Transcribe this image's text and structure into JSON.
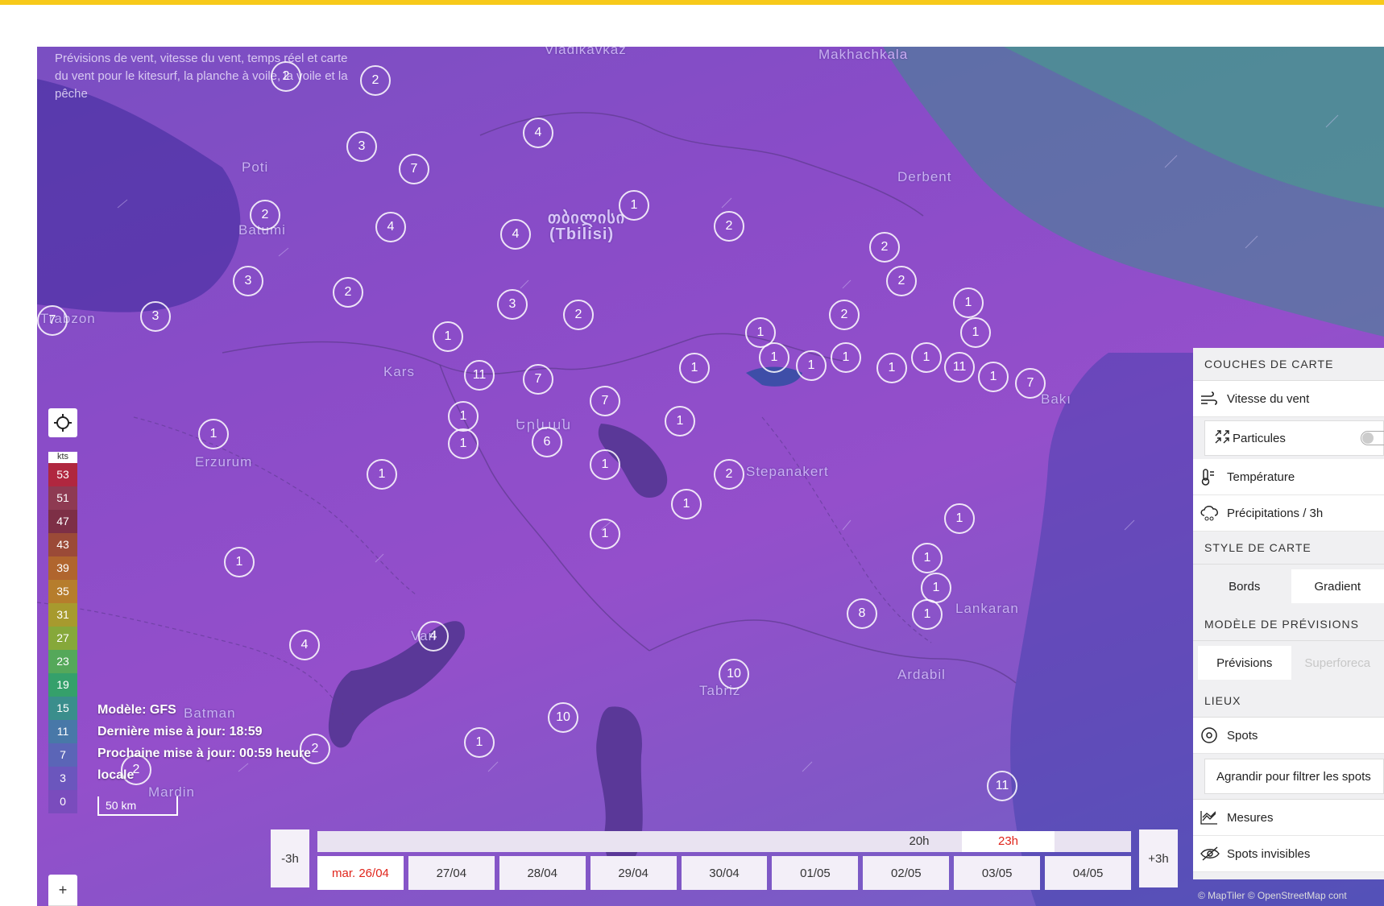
{
  "map": {
    "tagline": "Prévisions de vent, vitesse du vent, temps réel et carte du vent pour le kitesurf, la planche à voile, la voile et la pêche",
    "cities": [
      {
        "name": "Vladikavkaz",
        "big": false
      },
      {
        "name": "Makhachkala",
        "big": false
      },
      {
        "name": "Poti",
        "big": false
      },
      {
        "name": "Batumi",
        "big": false
      },
      {
        "name": "Derbent",
        "big": false
      },
      {
        "name": "თბილისი",
        "big": true
      },
      {
        "name": "(Tbilisi)",
        "big": true
      },
      {
        "name": "Trabzon",
        "big": false
      },
      {
        "name": "Kars",
        "big": false
      },
      {
        "name": "Bakı",
        "big": false
      },
      {
        "name": "Երևան",
        "big": false
      },
      {
        "name": "Erzurum",
        "big": false
      },
      {
        "name": "Stepanakert",
        "big": false
      },
      {
        "name": "Lankaran",
        "big": false
      },
      {
        "name": "Van",
        "big": false
      },
      {
        "name": "Ardabil",
        "big": false
      },
      {
        "name": "Tabriz",
        "big": false
      },
      {
        "name": "Batman",
        "big": false
      },
      {
        "name": "Mardin",
        "big": false
      }
    ],
    "clusters": [
      "2",
      "2",
      "3",
      "4",
      "7",
      "1",
      "2",
      "4",
      "4",
      "2",
      "2",
      "2",
      "3",
      "1",
      "3",
      "2",
      "2",
      "3",
      "7",
      "2",
      "1",
      "1",
      "1",
      "1",
      "1",
      "1",
      "1",
      "1",
      "11",
      "1",
      "7",
      "1",
      "11",
      "7",
      "7",
      "1",
      "1",
      "1",
      "6",
      "1",
      "1",
      "2",
      "1",
      "1",
      "1",
      "1",
      "1",
      "1",
      "1",
      "4",
      "4",
      "8",
      "1",
      "10",
      "10",
      "1",
      "2",
      "2",
      "11"
    ]
  },
  "legend": {
    "unit": "kts",
    "steps": [
      {
        "label": "53",
        "color": "#b0273f"
      },
      {
        "label": "51",
        "color": "#8e3a52"
      },
      {
        "label": "47",
        "color": "#7d2f46"
      },
      {
        "label": "43",
        "color": "#9b4a37"
      },
      {
        "label": "39",
        "color": "#b0652e"
      },
      {
        "label": "35",
        "color": "#b67d2c"
      },
      {
        "label": "31",
        "color": "#a79a2e"
      },
      {
        "label": "27",
        "color": "#86a83a"
      },
      {
        "label": "23",
        "color": "#55a85a"
      },
      {
        "label": "19",
        "color": "#35a06b"
      },
      {
        "label": "15",
        "color": "#3a8e8c"
      },
      {
        "label": "11",
        "color": "#4878a8"
      },
      {
        "label": "7",
        "color": "#5b65b7"
      },
      {
        "label": "3",
        "color": "#6b56bd"
      },
      {
        "label": "0",
        "color": "#7a4cbd"
      }
    ]
  },
  "info": {
    "model": "Modèle: GFS",
    "last_update": "Dernière mise à jour: 18:59",
    "next_update": "Prochaine mise à jour: 00:59 heure",
    "next_update_2": "locale",
    "scale": "50 km"
  },
  "zoom": {
    "plus": "+",
    "minus": "-"
  },
  "panel": {
    "layers_title": "COUCHES DE CARTE",
    "wind_speed": "Vitesse du vent",
    "particles": "Particules",
    "temperature": "Température",
    "precip": "Précipitations / 3h",
    "style_title": "STYLE DE CARTE",
    "style_options": [
      "Bords",
      "Gradient"
    ],
    "model_title": "MODÈLE DE PRÉVISIONS",
    "model_options": [
      "Prévisions",
      "Superforeca"
    ],
    "places_title": "LIEUX",
    "spots": "Spots",
    "filter": "Agrandir pour filtrer les spots",
    "measures": "Mesures",
    "invisible": "Spots invisibles"
  },
  "credit": "© MapTiler © OpenStreetMap cont",
  "timeline": {
    "prev": "-3h",
    "next": "+3h",
    "hours": [
      "20h",
      "23h"
    ],
    "days": [
      "mar. 26/04",
      "27/04",
      "28/04",
      "29/04",
      "30/04",
      "01/05",
      "02/05",
      "03/05",
      "04/05"
    ],
    "selected_day": 0
  }
}
